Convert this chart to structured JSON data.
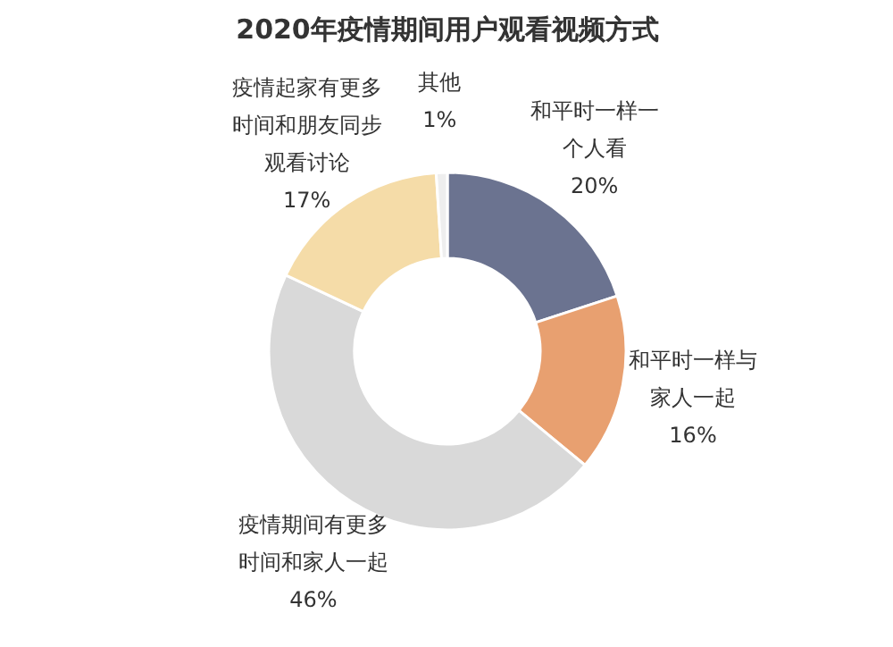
{
  "chart_data": {
    "type": "donut",
    "title": "2020年疫情期间用户观看视频方式",
    "categories": [
      "和平时一样一个人看",
      "和平时一样与家人一起",
      "疫情期间有更多时间和家人一起",
      "疫情起家有更多时间和朋友同步观看讨论",
      "其他"
    ],
    "values": [
      20,
      16,
      46,
      17,
      1
    ],
    "colors": [
      "#6b7390",
      "#e8a070",
      "#d9d9d9",
      "#f5dca8",
      "#eeeeee"
    ],
    "value_labels": [
      "20%",
      "16%",
      "46%",
      "17%",
      "1%"
    ]
  }
}
